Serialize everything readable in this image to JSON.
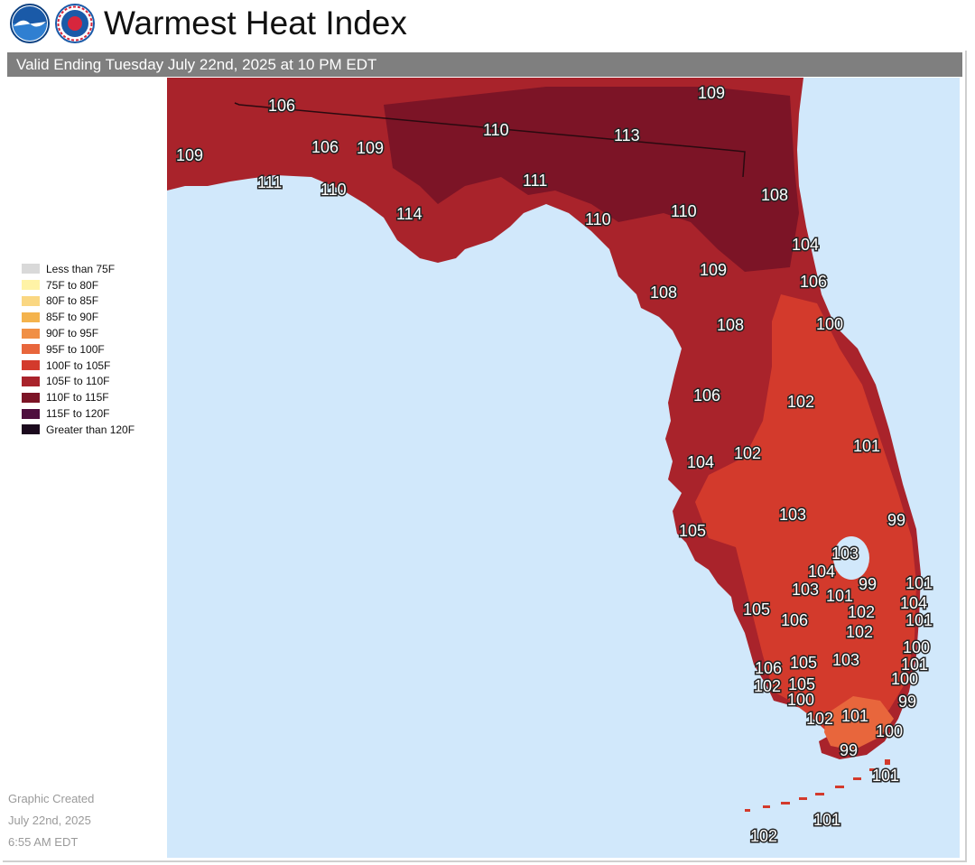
{
  "header": {
    "title": "Warmest Heat Index",
    "valid_text": "Valid Ending Tuesday July 22nd, 2025 at 10 PM EDT",
    "logo1_icon": "noaa-logo-icon",
    "logo2_icon": "nws-logo-icon"
  },
  "legend": {
    "items": [
      {
        "label": "Less than 75F",
        "color": "#d9d9d9"
      },
      {
        "label": "75F to 80F",
        "color": "#fff3a6"
      },
      {
        "label": "80F to 85F",
        "color": "#fad782"
      },
      {
        "label": "85F to 90F",
        "color": "#f4b34d"
      },
      {
        "label": "90F to 95F",
        "color": "#f08f45"
      },
      {
        "label": "95F to 100F",
        "color": "#e8663c"
      },
      {
        "label": "100F to 105F",
        "color": "#d33a2c"
      },
      {
        "label": "105F to 110F",
        "color": "#a9232b"
      },
      {
        "label": "110F to 115F",
        "color": "#7c1426"
      },
      {
        "label": "115F to 120F",
        "color": "#4e0f3e"
      },
      {
        "label": "Greater than 120F",
        "color": "#1c0a1e"
      }
    ]
  },
  "credit": {
    "line1": "Graphic Created",
    "line2": "July 22nd, 2025",
    "line3": "6:55 AM EDT"
  },
  "map": {
    "water_color": "#d1e8fb",
    "values": [
      "106",
      "109",
      "109",
      "106",
      "109",
      "110",
      "113",
      "111",
      "110",
      "114",
      "111",
      "110",
      "110",
      "108",
      "104",
      "109",
      "106",
      "108",
      "108",
      "100",
      "106",
      "102",
      "101",
      "104",
      "102",
      "103",
      "105",
      "99",
      "103",
      "104",
      "103",
      "101",
      "99",
      "105",
      "106",
      "102",
      "102",
      "101",
      "104",
      "101",
      "103",
      "105",
      "106",
      "105",
      "102",
      "100",
      "101",
      "100",
      "99",
      "100",
      "102",
      "101",
      "100",
      "99",
      "101",
      "101",
      "102"
    ]
  }
}
